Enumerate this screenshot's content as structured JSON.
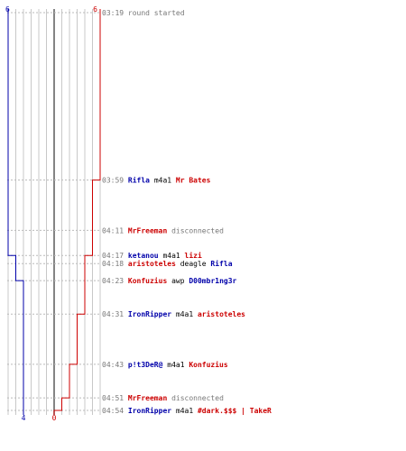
{
  "colors": {
    "blue_team": "#0000aa",
    "red_team": "#cc0000",
    "neutral": "#000000",
    "muted": "#777777",
    "grid": "#c8c8c8",
    "center": "#666666",
    "row_guide": "#bbbbbb"
  },
  "axis": {
    "blue_start": "6",
    "red_start": "6",
    "blue_end": "4",
    "red_end": "0"
  },
  "chart_data": {
    "type": "line",
    "xlabel": "",
    "ylabel": "",
    "grid": true,
    "ylim": [
      6,
      0
    ],
    "series": [
      {
        "x": [
          "03:19",
          "03:59",
          "04:11",
          "04:17",
          "04:18",
          "04:23",
          "04:31",
          "04:43",
          "04:51",
          "04:54"
        ],
        "values": [
          6,
          6,
          6,
          5,
          5,
          4,
          4,
          4,
          4,
          4
        ]
      },
      {
        "x": [
          "03:19",
          "03:59",
          "04:11",
          "04:17",
          "04:18",
          "04:23",
          "04:31",
          "04:43",
          "04:51",
          "04:54"
        ],
        "values": [
          6,
          5,
          5,
          4,
          4,
          4,
          3,
          2,
          1,
          0
        ]
      }
    ]
  },
  "events": [
    {
      "time": "03:19",
      "parts": [
        {
          "text": "round started",
          "role": "muted"
        }
      ]
    },
    {
      "time": "03:59",
      "parts": [
        {
          "text": "Rifla",
          "role": "blue"
        },
        {
          "text": " m4a1 ",
          "role": "neutral"
        },
        {
          "text": "Mr Bates",
          "role": "red"
        }
      ]
    },
    {
      "time": "04:11",
      "parts": [
        {
          "text": "MrFreeman",
          "role": "red"
        },
        {
          "text": " disconnected",
          "role": "muted"
        }
      ]
    },
    {
      "time": "04:17",
      "parts": [
        {
          "text": "ketanou",
          "role": "blue"
        },
        {
          "text": " m4a1 ",
          "role": "neutral"
        },
        {
          "text": "lizi",
          "role": "red"
        }
      ]
    },
    {
      "time": "04:18",
      "parts": [
        {
          "text": "aristoteles",
          "role": "red"
        },
        {
          "text": " deagle ",
          "role": "neutral"
        },
        {
          "text": "Rifla",
          "role": "blue"
        }
      ]
    },
    {
      "time": "04:23",
      "parts": [
        {
          "text": "Konfuzius",
          "role": "red"
        },
        {
          "text": " awp ",
          "role": "neutral"
        },
        {
          "text": "D00mbr1ng3r",
          "role": "blue"
        }
      ]
    },
    {
      "time": "04:31",
      "parts": [
        {
          "text": "IronRipper",
          "role": "blue"
        },
        {
          "text": " m4a1 ",
          "role": "neutral"
        },
        {
          "text": "aristoteles",
          "role": "red"
        }
      ]
    },
    {
      "time": "04:43",
      "parts": [
        {
          "text": "p!t3DeR@",
          "role": "blue"
        },
        {
          "text": " m4a1 ",
          "role": "neutral"
        },
        {
          "text": "Konfuzius",
          "role": "red"
        }
      ]
    },
    {
      "time": "04:51",
      "parts": [
        {
          "text": "MrFreeman",
          "role": "red"
        },
        {
          "text": " disconnected",
          "role": "muted"
        }
      ]
    },
    {
      "time": "04:54",
      "parts": [
        {
          "text": "IronRipper",
          "role": "blue"
        },
        {
          "text": " m4a1 ",
          "role": "neutral"
        },
        {
          "text": "#dark.$$$ | TakeR",
          "role": "red"
        }
      ]
    }
  ]
}
